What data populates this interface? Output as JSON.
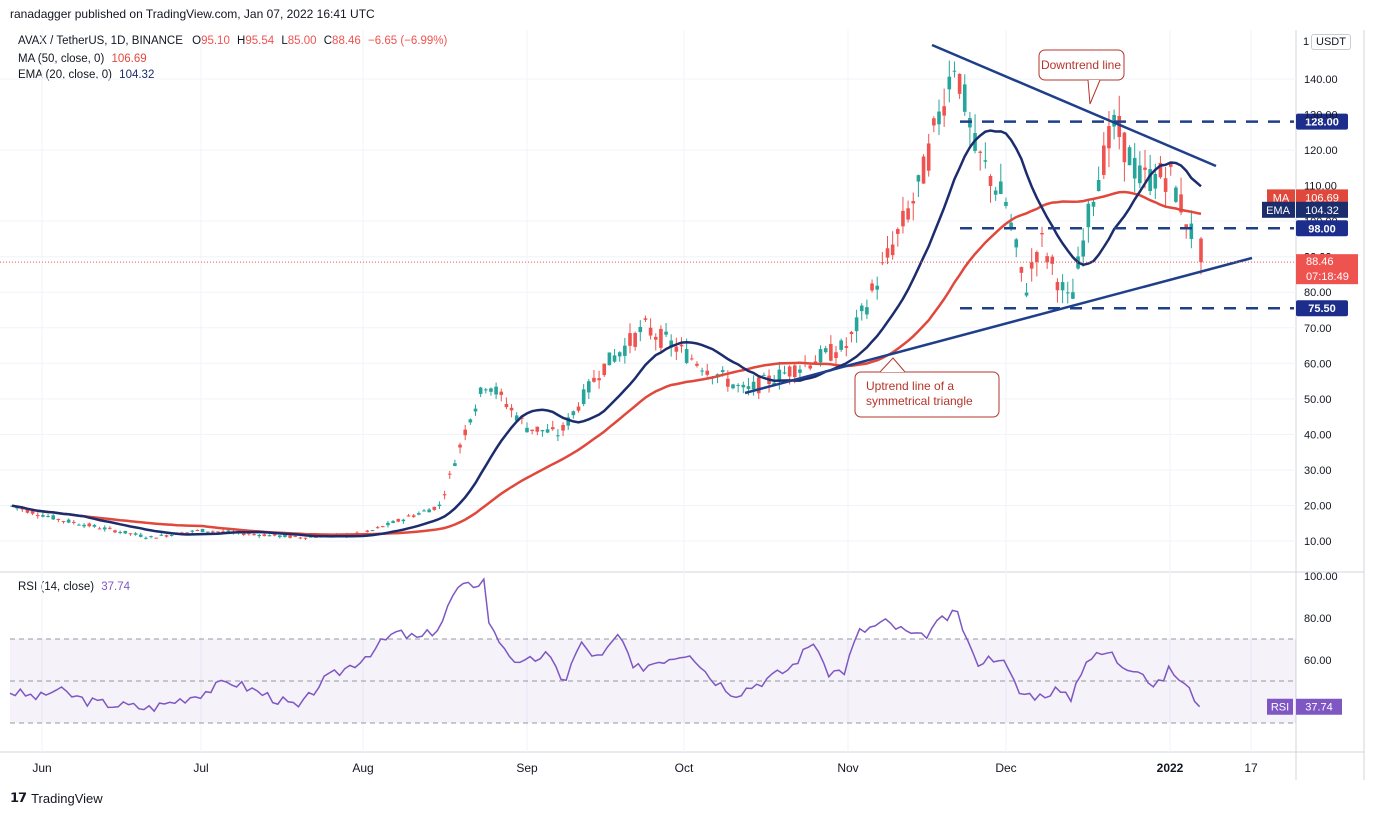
{
  "header": {
    "published": "ranadagger published on TradingView.com, Jan 07, 2022 16:41 UTC",
    "symbol": "AVAX / TetherUS, 1D, BINANCE",
    "o_label": "O",
    "o": "95.10",
    "h_label": "H",
    "h": "95.54",
    "l_label": "L",
    "l": "85.00",
    "c_label": "C",
    "c": "88.46",
    "change": "−6.65 (−6.99%)",
    "ma_label": "MA (50, close, 0)",
    "ma_value": "106.69",
    "ema_label": "EMA (20, close, 0)",
    "ema_value": "104.32",
    "currency": "USDT",
    "scale_mode": "1"
  },
  "rsi": {
    "label": "RSI (14, close)",
    "value": "37.74",
    "axis_ticks": [
      "100.00",
      "80.00",
      "60.00"
    ],
    "tag": "RSI",
    "band": [
      30,
      70
    ],
    "mid": 50
  },
  "footer": {
    "brand": "TradingView"
  },
  "annotations": {
    "downtrend": "Downtrend line",
    "uptrend_1": "Uptrend line of a",
    "uptrend_2": "symmetrical triangle"
  },
  "colors": {
    "up": "#26a69a",
    "down": "#ef5350",
    "ma": "#e0483c",
    "ema": "#1c2d6e",
    "line": "#1f3f8a",
    "rsi": "#7e57c2"
  },
  "chart_data": {
    "type": "candlestick",
    "price_axis_ticks": [
      "140.00",
      "120.00",
      "100.00",
      "90.00",
      "80.00",
      "70.00",
      "60.00",
      "50.00",
      "40.00",
      "30.00",
      "20.00",
      "10.00"
    ],
    "x_ticks": [
      "Jun",
      "Jul",
      "Aug",
      "Sep",
      "Oct",
      "Nov",
      "Dec",
      "2022",
      "17"
    ],
    "levels": [
      {
        "label": "128.00",
        "value": 128
      },
      {
        "label": "98.00",
        "value": 98
      },
      {
        "label": "75.50",
        "value": 75.5
      }
    ],
    "tags": {
      "ma": {
        "label": "MA",
        "value": "106.69"
      },
      "ema": {
        "label": "EMA",
        "value": "104.32"
      },
      "last": {
        "value": "88.46",
        "countdown": "07:18:49"
      },
      "partial_130": "130.00",
      "partial_110": "110.00",
      "partial_90": "90.00"
    },
    "key_points": [
      {
        "date": "Jun",
        "close": 20
      },
      {
        "date": "Jul",
        "close": 13
      },
      {
        "date": "Aug",
        "close": 12
      },
      {
        "date": "late Aug",
        "close": 55
      },
      {
        "date": "Sep",
        "close": 45
      },
      {
        "date": "late Sep",
        "close": 70
      },
      {
        "date": "Oct",
        "close": 60
      },
      {
        "date": "mid Oct",
        "close": 54
      },
      {
        "date": "Nov",
        "close": 65
      },
      {
        "date": "late Nov",
        "close": 146
      },
      {
        "date": "Dec",
        "close": 105
      },
      {
        "date": "mid Dec",
        "close": 75.5
      },
      {
        "date": "late Dec",
        "close": 128
      },
      {
        "date": "Jan 07",
        "close": 88.46
      }
    ]
  }
}
